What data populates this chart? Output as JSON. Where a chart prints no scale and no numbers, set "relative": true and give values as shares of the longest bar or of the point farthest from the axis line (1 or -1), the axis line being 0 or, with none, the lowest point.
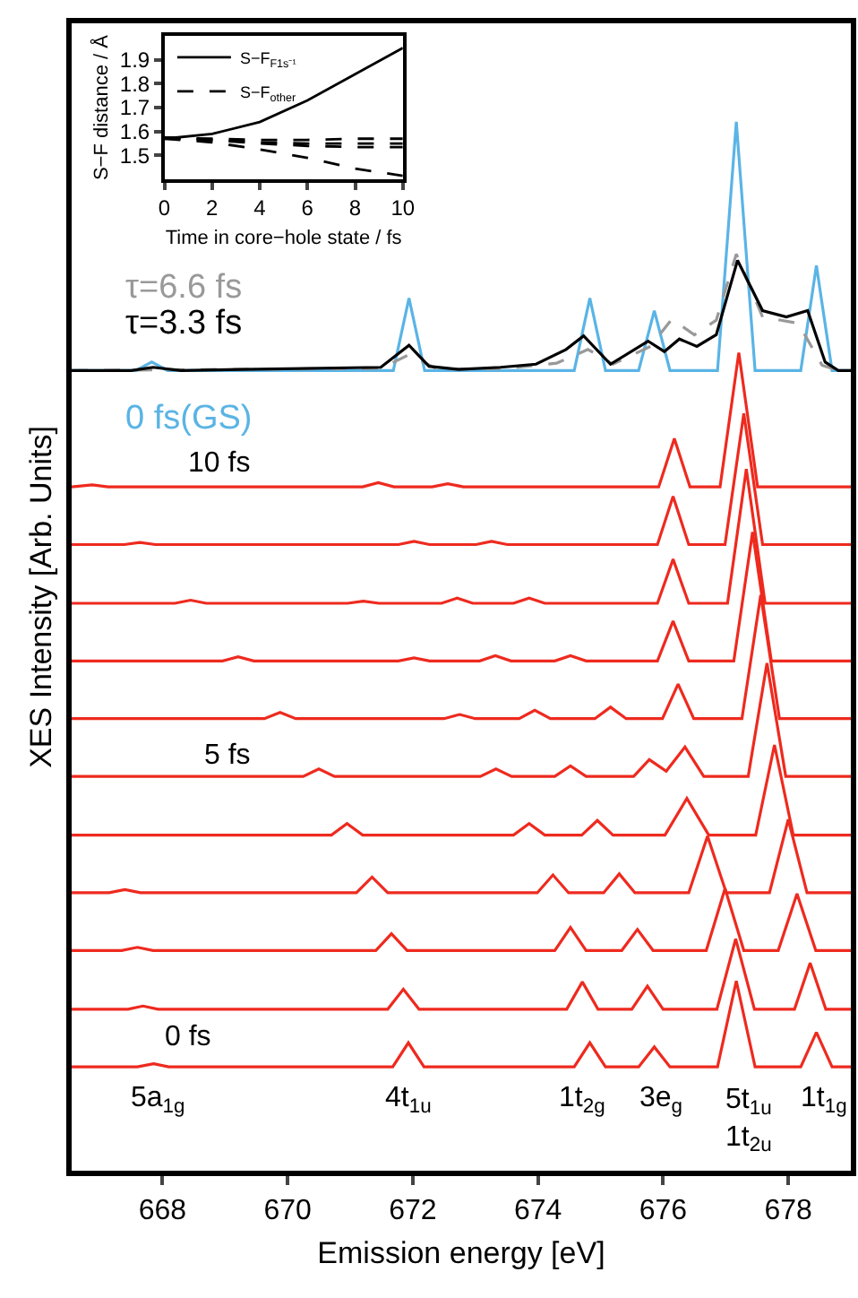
{
  "chart_data": [
    {
      "type": "line",
      "xlabel": "Emission energy [eV]",
      "ylabel": "XES Intensity [Arb. Units]",
      "relative": true,
      "tick_labels": "x",
      "xlim": [
        666.55,
        679.0
      ],
      "xticks": [
        668,
        670,
        672,
        674,
        676,
        678
      ],
      "series": [
        {
          "color": "#ee2a1f",
          "x": [
            666.55,
            667.6,
            667.86,
            668.1,
            671.68,
            671.93,
            672.18,
            674.58,
            674.83,
            675.08,
            675.61,
            675.86,
            676.11,
            676.87,
            677.17,
            677.47,
            678.2,
            678.45,
            678.7,
            679.0
          ],
          "values": [
            0.099,
            0.099,
            0.102,
            0.099,
            0.099,
            0.122,
            0.099,
            0.099,
            0.122,
            0.099,
            0.099,
            0.118,
            0.099,
            0.099,
            0.181,
            0.099,
            0.099,
            0.132,
            0.099,
            0.099
          ]
        },
        {
          "color": "#ee2a1f",
          "x": [
            666.55,
            667.45,
            667.69,
            667.93,
            671.6,
            671.85,
            672.1,
            674.46,
            674.71,
            674.96,
            675.5,
            675.75,
            676.0,
            676.86,
            677.16,
            677.46,
            678.1,
            678.35,
            678.6,
            679.0
          ],
          "values": [
            0.154,
            0.154,
            0.157,
            0.154,
            0.154,
            0.173,
            0.154,
            0.154,
            0.18,
            0.154,
            0.154,
            0.176,
            0.154,
            0.154,
            0.221,
            0.154,
            0.154,
            0.198,
            0.154,
            0.154
          ]
        },
        {
          "color": "#ee2a1f",
          "x": [
            666.55,
            667.35,
            667.6,
            667.85,
            671.41,
            671.66,
            671.91,
            674.27,
            674.52,
            674.77,
            675.34,
            675.59,
            675.84,
            676.69,
            676.99,
            677.29,
            677.84,
            678.14,
            678.44,
            679.0
          ],
          "values": [
            0.21,
            0.21,
            0.213,
            0.21,
            0.21,
            0.226,
            0.21,
            0.21,
            0.232,
            0.21,
            0.21,
            0.23,
            0.21,
            0.21,
            0.269,
            0.21,
            0.21,
            0.264,
            0.21,
            0.21
          ]
        },
        {
          "color": "#ee2a1f",
          "x": [
            666.55,
            667.15,
            667.4,
            667.65,
            671.1,
            671.35,
            671.6,
            673.99,
            674.24,
            674.49,
            675.05,
            675.3,
            675.55,
            676.41,
            676.71,
            677.01,
            677.7,
            678.0,
            678.3,
            679.0
          ],
          "values": [
            0.265,
            0.265,
            0.268,
            0.265,
            0.265,
            0.28,
            0.265,
            0.265,
            0.282,
            0.265,
            0.265,
            0.283,
            0.265,
            0.265,
            0.319,
            0.265,
            0.265,
            0.335,
            0.265,
            0.265
          ]
        },
        {
          "color": "#ee2a1f",
          "x": [
            666.55,
            670.7,
            670.95,
            671.2,
            673.61,
            673.86,
            674.11,
            674.7,
            674.95,
            675.2,
            676.03,
            676.38,
            676.73,
            677.48,
            677.78,
            678.08,
            679.0
          ],
          "values": [
            0.32,
            0.32,
            0.331,
            0.32,
            0.32,
            0.331,
            0.32,
            0.32,
            0.334,
            0.32,
            0.32,
            0.355,
            0.32,
            0.32,
            0.406,
            0.32,
            0.32
          ]
        },
        {
          "color": "#ee2a1f",
          "x": [
            666.55,
            670.25,
            670.5,
            670.75,
            673.08,
            673.33,
            673.58,
            674.27,
            674.52,
            674.77,
            675.53,
            675.78,
            676.05,
            676.35,
            676.65,
            677.36,
            677.66,
            677.96,
            679.0
          ],
          "values": [
            0.376,
            0.376,
            0.383,
            0.376,
            0.376,
            0.383,
            0.376,
            0.376,
            0.386,
            0.376,
            0.376,
            0.392,
            0.381,
            0.404,
            0.376,
            0.376,
            0.484,
            0.376,
            0.376
          ]
        },
        {
          "color": "#ee2a1f",
          "x": [
            666.55,
            669.63,
            669.88,
            670.13,
            672.5,
            672.75,
            673.0,
            673.7,
            673.95,
            674.2,
            674.91,
            675.16,
            675.41,
            675.99,
            676.24,
            676.49,
            677.26,
            677.56,
            677.86,
            679.0
          ],
          "values": [
            0.431,
            0.431,
            0.437,
            0.431,
            0.431,
            0.435,
            0.431,
            0.431,
            0.439,
            0.431,
            0.431,
            0.442,
            0.431,
            0.431,
            0.464,
            0.431,
            0.431,
            0.549,
            0.431,
            0.431
          ]
        },
        {
          "color": "#ee2a1f",
          "x": [
            666.55,
            668.96,
            669.21,
            669.46,
            671.77,
            672.02,
            672.27,
            673.07,
            673.32,
            673.57,
            674.27,
            674.52,
            674.77,
            675.91,
            676.16,
            676.41,
            677.13,
            677.43,
            677.73,
            679.0
          ],
          "values": [
            0.486,
            0.486,
            0.49,
            0.486,
            0.486,
            0.489,
            0.486,
            0.486,
            0.491,
            0.486,
            0.486,
            0.491,
            0.486,
            0.486,
            0.524,
            0.486,
            0.486,
            0.609,
            0.486,
            0.486
          ]
        },
        {
          "color": "#ee2a1f",
          "x": [
            666.55,
            668.2,
            668.45,
            668.7,
            670.96,
            671.21,
            671.46,
            672.46,
            672.71,
            672.96,
            673.61,
            673.86,
            674.11,
            675.91,
            676.16,
            676.41,
            677.03,
            677.33,
            677.63,
            679.0
          ],
          "values": [
            0.541,
            0.541,
            0.544,
            0.541,
            0.541,
            0.543,
            0.541,
            0.541,
            0.546,
            0.541,
            0.541,
            0.546,
            0.541,
            0.541,
            0.583,
            0.541,
            0.541,
            0.669,
            0.541,
            0.541
          ]
        },
        {
          "color": "#ee2a1f",
          "x": [
            666.55,
            667.39,
            667.64,
            667.89,
            671.77,
            672.02,
            672.27,
            673.01,
            673.26,
            673.51,
            675.91,
            676.16,
            676.41,
            676.99,
            677.29,
            677.59,
            679.0
          ],
          "values": [
            0.597,
            0.597,
            0.599,
            0.597,
            0.597,
            0.6,
            0.597,
            0.597,
            0.6,
            0.597,
            0.597,
            0.643,
            0.597,
            0.597,
            0.722,
            0.597,
            0.597
          ]
        },
        {
          "color": "#ee2a1f",
          "x": [
            666.55,
            666.88,
            667.13,
            671.2,
            671.45,
            671.7,
            672.31,
            672.56,
            672.81,
            675.93,
            676.18,
            676.43,
            676.91,
            677.21,
            677.51,
            679.0
          ],
          "values": [
            0.652,
            0.654,
            0.652,
            0.652,
            0.656,
            0.652,
            0.652,
            0.655,
            0.652,
            0.652,
            0.698,
            0.652,
            0.652,
            0.78,
            0.652,
            0.652
          ]
        },
        {
          "name": "0 fs(GS)",
          "color": "#5ab4e5",
          "x": [
            666.55,
            667.58,
            667.83,
            668.08,
            671.69,
            671.94,
            672.19,
            674.58,
            674.83,
            675.08,
            675.61,
            675.86,
            676.11,
            676.87,
            677.17,
            677.47,
            678.2,
            678.45,
            678.7,
            679.0
          ],
          "values": [
            0.763,
            0.763,
            0.771,
            0.763,
            0.763,
            0.832,
            0.763,
            0.763,
            0.832,
            0.763,
            0.763,
            0.82,
            0.763,
            0.763,
            1.0,
            0.763,
            0.763,
            0.863,
            0.763,
            0.763
          ]
        },
        {
          "name": "τ=6.6 fs",
          "color": "#999999",
          "line_style": "dashed",
          "x": [
            666.55,
            671.49,
            671.94,
            672.4,
            673.5,
            674.3,
            674.8,
            675.2,
            675.8,
            676.14,
            676.5,
            676.85,
            677.17,
            677.59,
            678.16,
            678.54,
            678.8,
            679.0
          ],
          "values": [
            0.763,
            0.765,
            0.778,
            0.764,
            0.765,
            0.77,
            0.783,
            0.769,
            0.786,
            0.812,
            0.797,
            0.811,
            0.874,
            0.814,
            0.808,
            0.768,
            0.763,
            0.763
          ]
        },
        {
          "name": "τ=3.3 fs",
          "color": "#000000",
          "x": [
            666.55,
            667.5,
            667.85,
            668.3,
            671.49,
            671.94,
            672.26,
            672.73,
            673.4,
            673.97,
            674.45,
            674.73,
            675.16,
            675.76,
            676.02,
            676.26,
            676.54,
            676.85,
            677.19,
            677.59,
            677.97,
            678.31,
            678.59,
            678.8,
            679.0
          ],
          "values": [
            0.763,
            0.763,
            0.766,
            0.763,
            0.766,
            0.787,
            0.767,
            0.764,
            0.766,
            0.769,
            0.783,
            0.796,
            0.769,
            0.791,
            0.781,
            0.793,
            0.786,
            0.797,
            0.868,
            0.82,
            0.814,
            0.82,
            0.771,
            0.763,
            0.763
          ]
        }
      ],
      "annotations": [
        "0 fs",
        "5 fs",
        "10 fs",
        "5a$_{1g}$",
        "4t$_{1u}$",
        "1t$_{2g}$",
        "3e$_{g}$",
        "5t$_{1u}$\n1t$_{2u}$",
        "1t$_{1g}$"
      ]
    },
    {
      "type": "line",
      "xlabel": "Time in core−hole state / fs",
      "ylabel": "S−F distance / Å",
      "legend": "top left",
      "xlim": [
        0,
        10
      ],
      "xticks": [
        0,
        2,
        4,
        6,
        8,
        10
      ],
      "ylim": [
        1.4,
        2.0
      ],
      "yticks": [
        1.5,
        1.6,
        1.7,
        1.8,
        1.9
      ],
      "series": [
        {
          "name": "S−F$_{F1s⁻¹}$",
          "color": "#000000",
          "x": [
            0,
            2,
            4,
            6,
            8,
            10
          ],
          "values": [
            1.57,
            1.59,
            1.64,
            1.73,
            1.84,
            1.95
          ]
        },
        {
          "name": "S−F$_{other}$",
          "color": "#000000",
          "line_style": "dashed",
          "x": [
            0,
            2,
            4,
            6,
            8,
            10
          ],
          "values": [
            1.57,
            1.555,
            1.525,
            1.49,
            1.445,
            1.415
          ]
        },
        {
          "color": "#000000",
          "line_style": "dashed",
          "x": [
            0,
            2,
            4,
            6,
            8,
            10
          ],
          "values": [
            1.575,
            1.57,
            1.565,
            1.565,
            1.57,
            1.57
          ]
        },
        {
          "color": "#000000",
          "line_style": "dashed",
          "x": [
            0,
            2,
            4,
            6,
            8,
            10
          ],
          "values": [
            1.575,
            1.565,
            1.555,
            1.55,
            1.55,
            1.55
          ]
        },
        {
          "color": "#000000",
          "line_style": "dashed",
          "x": [
            0,
            2,
            4,
            6,
            8,
            10
          ],
          "values": [
            1.575,
            1.565,
            1.55,
            1.54,
            1.535,
            1.535
          ]
        }
      ]
    }
  ]
}
